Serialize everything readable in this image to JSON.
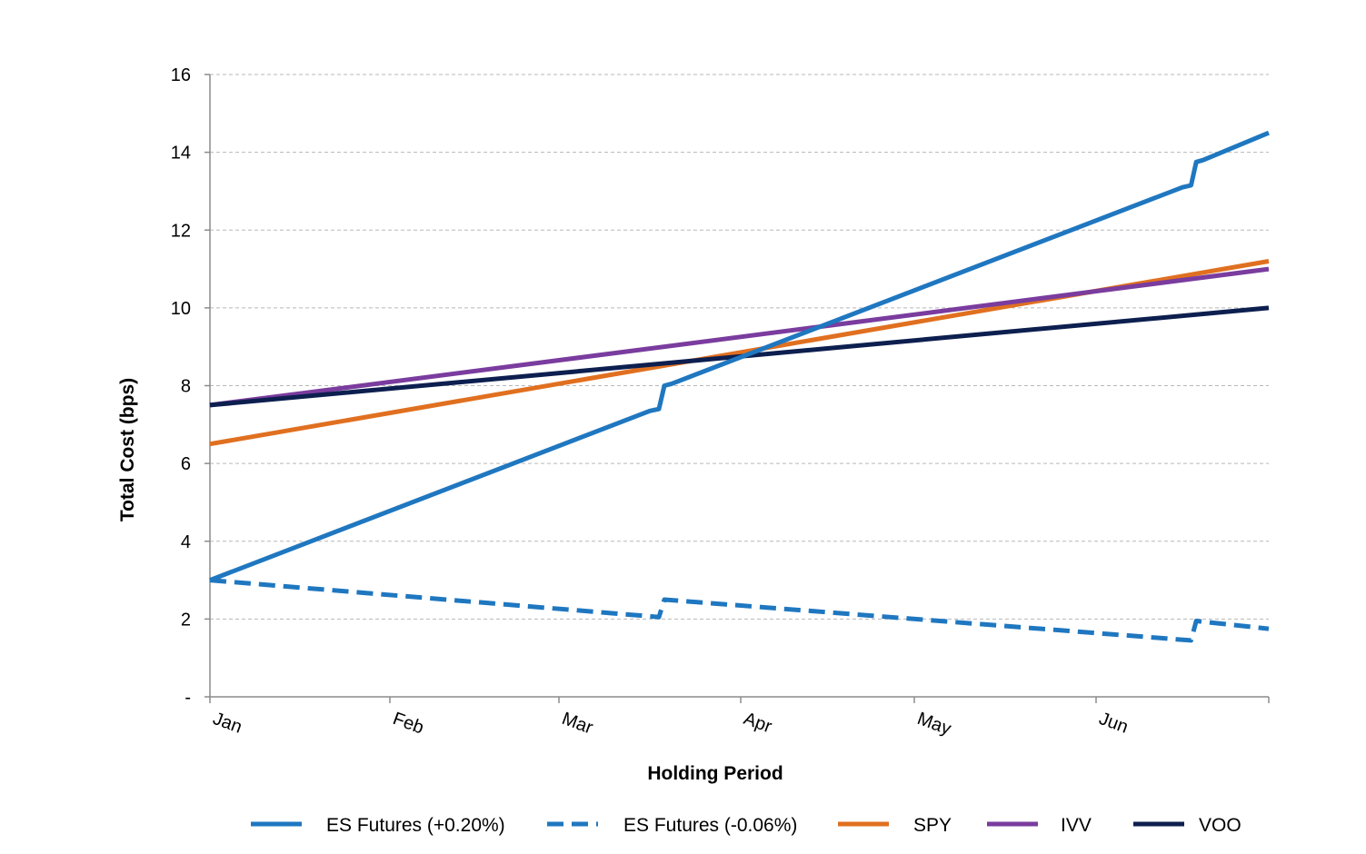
{
  "chart_data": {
    "type": "line",
    "title": "",
    "xlabel": "Holding Period",
    "ylabel": "Total Cost (bps)",
    "ylim": [
      0,
      16
    ],
    "y_ticks": [
      {
        "value": 0,
        "label": "-"
      },
      {
        "value": 2,
        "label": "2"
      },
      {
        "value": 4,
        "label": "4"
      },
      {
        "value": 6,
        "label": "6"
      },
      {
        "value": 8,
        "label": "8"
      },
      {
        "value": 10,
        "label": "10"
      },
      {
        "value": 12,
        "label": "12"
      },
      {
        "value": 14,
        "label": "14"
      },
      {
        "value": 16,
        "label": "16"
      }
    ],
    "xlim": [
      0,
      6
    ],
    "x_ticks": [
      {
        "value": 0,
        "label": "Jan"
      },
      {
        "value": 1,
        "label": "Feb"
      },
      {
        "value": 2,
        "label": "Mar"
      },
      {
        "value": 3,
        "label": "Apr"
      },
      {
        "value": 4,
        "label": "May"
      },
      {
        "value": 5,
        "label": "Jun"
      }
    ],
    "grid": "horizontal-dashed",
    "legend_position": "bottom",
    "series": [
      {
        "name": "ES Futures (+0.20%)",
        "color": "#1f77c0",
        "style": "solid",
        "points": [
          [
            0,
            3.0
          ],
          [
            2.5,
            7.35
          ],
          [
            2.55,
            7.4
          ],
          [
            2.58,
            8.0
          ],
          [
            2.62,
            8.05
          ],
          [
            5.5,
            13.1
          ],
          [
            5.55,
            13.15
          ],
          [
            5.58,
            13.75
          ],
          [
            5.62,
            13.8
          ],
          [
            6.0,
            14.5
          ]
        ]
      },
      {
        "name": "ES Futures (-0.06%)",
        "color": "#1f77c0",
        "style": "dashed",
        "points": [
          [
            0,
            3.0
          ],
          [
            2.55,
            2.05
          ],
          [
            2.58,
            2.5
          ],
          [
            5.55,
            1.45
          ],
          [
            5.58,
            1.95
          ],
          [
            6.0,
            1.75
          ]
        ]
      },
      {
        "name": "SPY",
        "color": "#e07020",
        "style": "solid",
        "points": [
          [
            0,
            6.5
          ],
          [
            6.0,
            11.2
          ]
        ]
      },
      {
        "name": "IVV",
        "color": "#7a3c9e",
        "style": "solid",
        "points": [
          [
            0,
            7.5
          ],
          [
            6.0,
            11.0
          ]
        ]
      },
      {
        "name": "VOO",
        "color": "#0d1f4f",
        "style": "solid",
        "points": [
          [
            0,
            7.5
          ],
          [
            6.0,
            10.0
          ]
        ]
      }
    ]
  }
}
